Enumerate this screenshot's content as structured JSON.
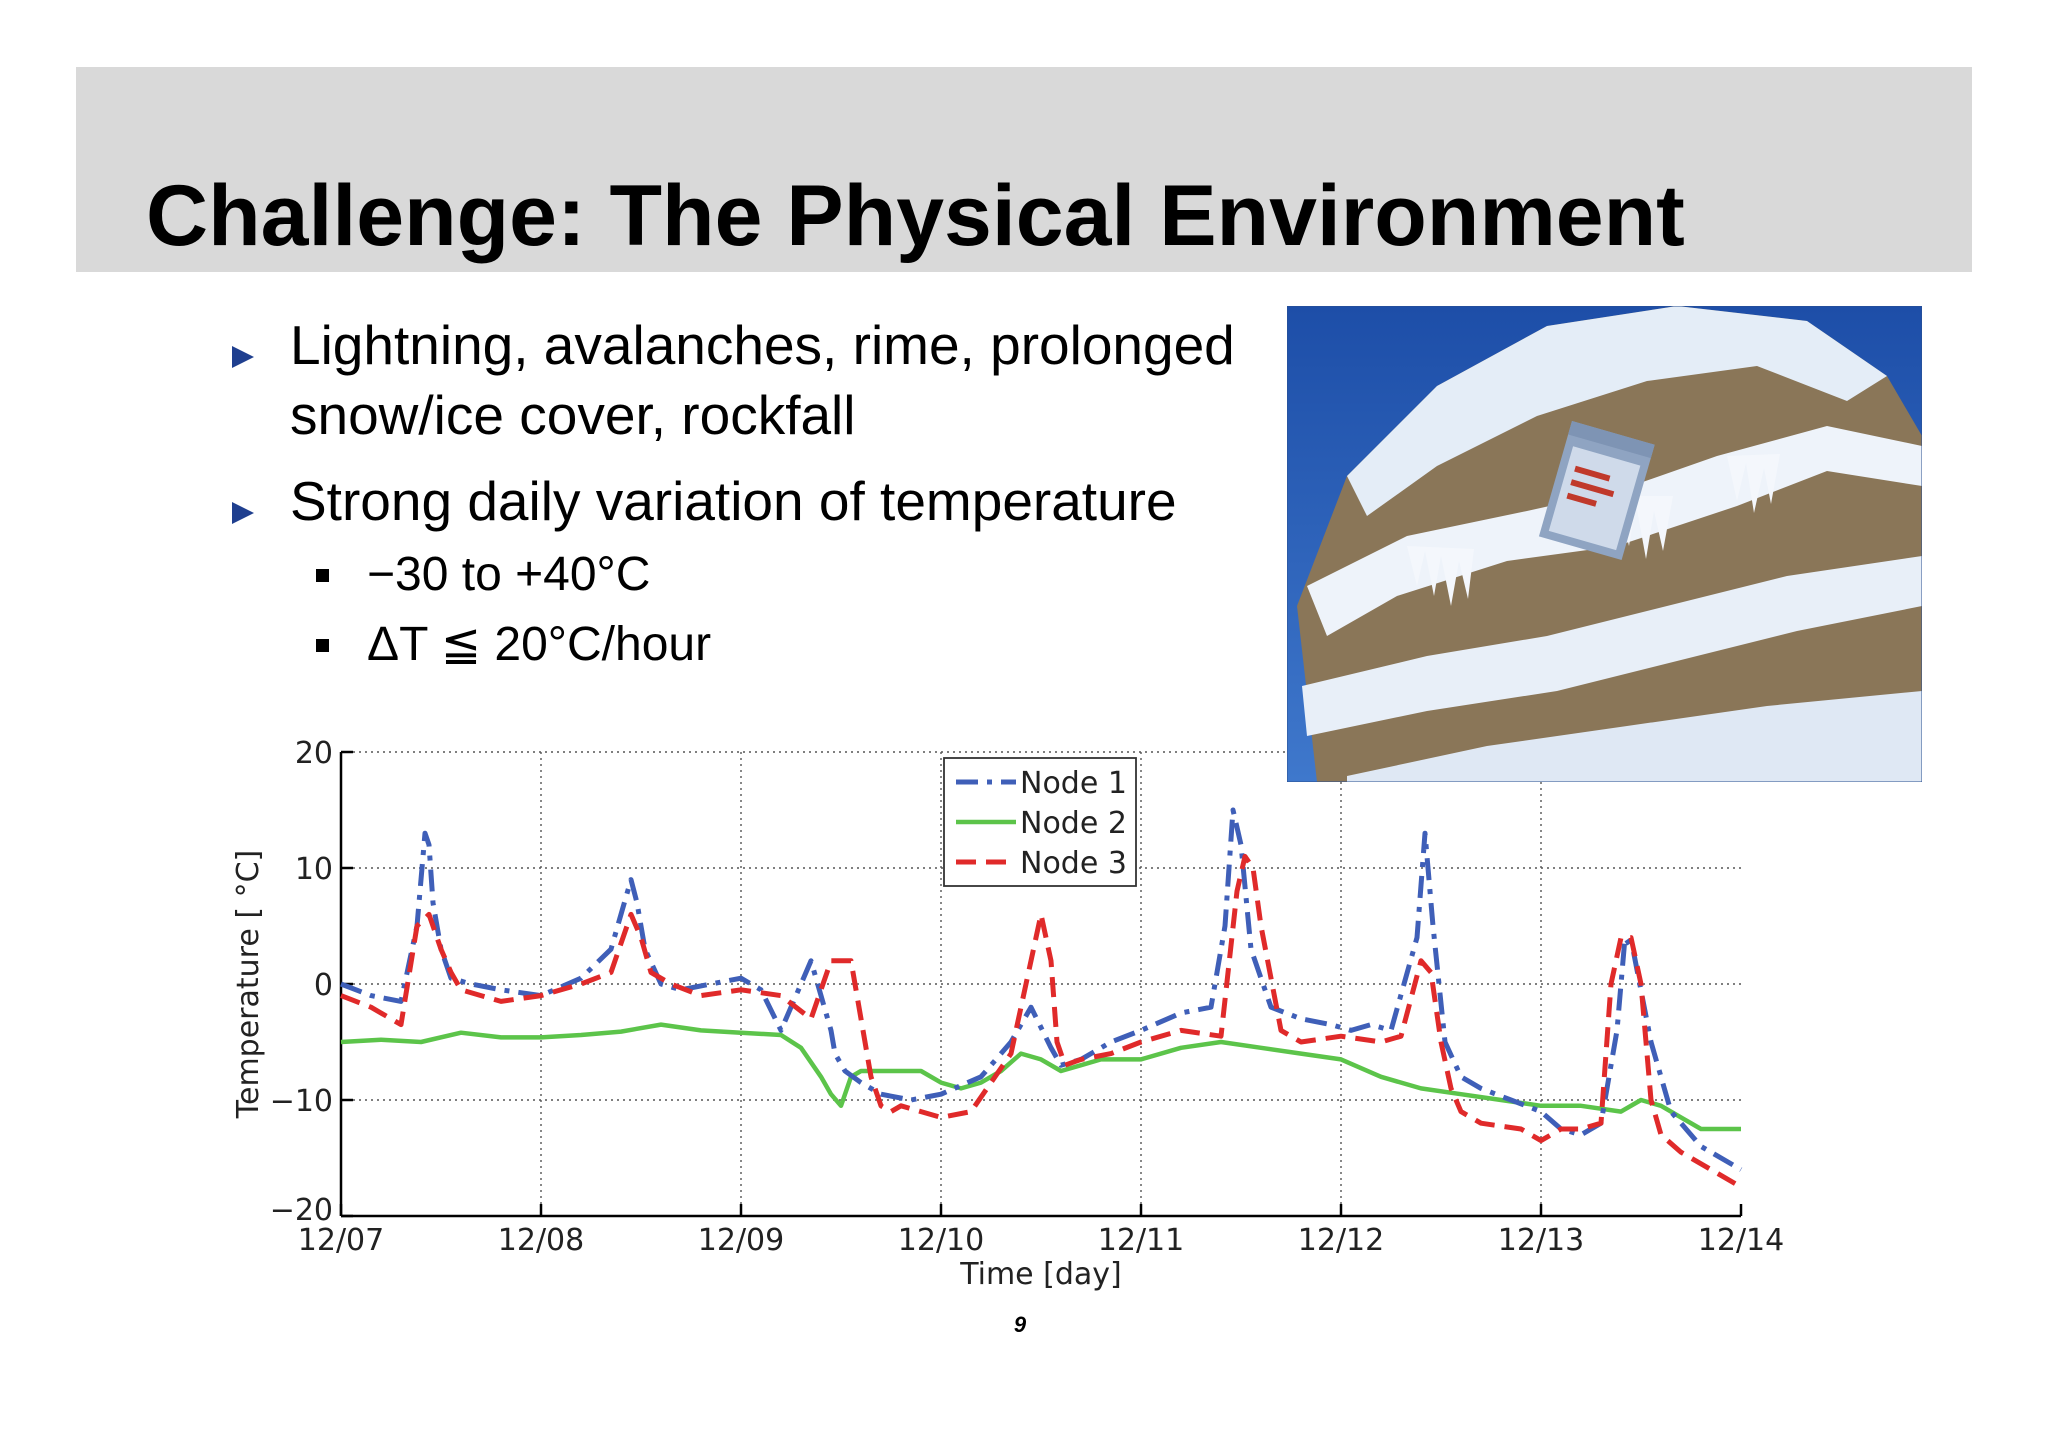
{
  "slide": {
    "title": "Challenge: The Physical Environment",
    "bullets": [
      "Lightning, avalanches, rime, prolonged snow/ice cover, rockfall",
      "Strong daily variation of temperature"
    ],
    "sub_bullets": [
      "−30 to +40°C",
      "ΔT ≦ 20°C/hour"
    ],
    "page_number": "9",
    "photo_icon": "rime-covered-rock-with-sensor-photo",
    "colors": {
      "title_bar": "#d9d9d9",
      "bullet_arrow": "#1f3f8f",
      "node1": "#3f5fb8",
      "node2": "#5cc44a",
      "node3": "#e02a2a"
    }
  },
  "chart_data": {
    "type": "line",
    "title": "",
    "xlabel": "Time [day]",
    "ylabel": "Temperature [ °C]",
    "xlim": [
      0,
      7
    ],
    "ylim": [
      -20,
      20
    ],
    "x_ticks": [
      "12/07",
      "12/08",
      "12/09",
      "12/10",
      "12/11",
      "12/12",
      "12/13",
      "12/14"
    ],
    "y_ticks": [
      "−20",
      "−10",
      "0",
      "10",
      "20"
    ],
    "y_tick_values": [
      -20,
      -10,
      0,
      10,
      20
    ],
    "grid": true,
    "legend_position": "top-center",
    "series": [
      {
        "name": "Node 1",
        "style": "dash-dot",
        "x": [
          0,
          0.15,
          0.3,
          0.38,
          0.42,
          0.44,
          0.46,
          0.5,
          0.55,
          0.65,
          0.8,
          1.0,
          1.2,
          1.35,
          1.45,
          1.48,
          1.52,
          1.6,
          1.7,
          1.85,
          2.0,
          2.1,
          2.2,
          2.35,
          2.45,
          2.47,
          2.52,
          2.6,
          2.7,
          2.85,
          3.0,
          3.2,
          3.35,
          3.45,
          3.55,
          3.6,
          3.7,
          3.85,
          4.0,
          4.2,
          4.35,
          4.42,
          4.46,
          4.5,
          4.55,
          4.65,
          4.8,
          4.95,
          5.05,
          5.15,
          5.25,
          5.38,
          5.42,
          5.46,
          5.52,
          5.6,
          5.7,
          5.85,
          6.0,
          6.1,
          6.2,
          6.3,
          6.38,
          6.42,
          6.46,
          6.55,
          6.65,
          6.8,
          7.0
        ],
        "y": [
          0,
          -1,
          -1.5,
          5,
          13,
          12,
          7,
          3,
          0.5,
          0,
          -0.5,
          -1,
          0.5,
          3,
          9,
          7,
          3,
          0,
          -0.5,
          0,
          0.5,
          -0.5,
          -4,
          2,
          -4,
          -6,
          -7.5,
          -8.5,
          -9.5,
          -10,
          -9.5,
          -8,
          -5,
          -2,
          -5.5,
          -7,
          -6.5,
          -5,
          -4,
          -2.5,
          -2,
          5,
          15,
          12,
          3,
          -2,
          -3,
          -3.5,
          -4,
          -3.5,
          -4,
          4,
          13,
          5,
          -5,
          -8,
          -9,
          -10,
          -11,
          -12.5,
          -13,
          -12,
          -4,
          4,
          3,
          -5,
          -11,
          -14,
          -16
        ]
      },
      {
        "name": "Node 2",
        "style": "solid",
        "x": [
          0,
          0.2,
          0.4,
          0.6,
          0.8,
          1.0,
          1.2,
          1.4,
          1.6,
          1.8,
          2.0,
          2.2,
          2.3,
          2.4,
          2.45,
          2.5,
          2.55,
          2.6,
          2.7,
          2.9,
          3.0,
          3.1,
          3.2,
          3.3,
          3.4,
          3.5,
          3.6,
          3.7,
          3.8,
          4.0,
          4.2,
          4.4,
          4.6,
          4.8,
          5.0,
          5.2,
          5.4,
          5.6,
          5.8,
          6.0,
          6.2,
          6.4,
          6.5,
          6.6,
          6.7,
          6.8,
          7.0
        ],
        "y": [
          -5,
          -4.8,
          -5,
          -4.2,
          -4.6,
          -4.6,
          -4.4,
          -4.1,
          -3.5,
          -4,
          -4.2,
          -4.4,
          -5.5,
          -8,
          -9.5,
          -10.5,
          -8,
          -7.5,
          -7.5,
          -7.5,
          -8.5,
          -9,
          -8.5,
          -7.5,
          -6,
          -6.5,
          -7.5,
          -7,
          -6.5,
          -6.5,
          -5.5,
          -5,
          -5.5,
          -6,
          -6.5,
          -8,
          -9,
          -9.5,
          -10,
          -10.5,
          -10.5,
          -11,
          -10,
          -10.5,
          -11.5,
          -12.5,
          -12.5
        ]
      },
      {
        "name": "Node 3",
        "style": "dash",
        "x": [
          0,
          0.15,
          0.3,
          0.38,
          0.44,
          0.5,
          0.55,
          0.6,
          0.7,
          0.8,
          1.0,
          1.2,
          1.35,
          1.45,
          1.5,
          1.55,
          1.65,
          1.8,
          2.0,
          2.2,
          2.35,
          2.45,
          2.5,
          2.55,
          2.6,
          2.65,
          2.7,
          2.75,
          2.8,
          2.9,
          3.0,
          3.15,
          3.35,
          3.5,
          3.55,
          3.58,
          3.62,
          3.7,
          3.85,
          4.0,
          4.2,
          4.4,
          4.48,
          4.52,
          4.56,
          4.6,
          4.7,
          4.8,
          5.0,
          5.2,
          5.3,
          5.4,
          5.45,
          5.5,
          5.55,
          5.6,
          5.7,
          5.9,
          6.0,
          6.1,
          6.2,
          6.3,
          6.35,
          6.4,
          6.45,
          6.5,
          6.55,
          6.6,
          6.7,
          6.85,
          7.0
        ],
        "y": [
          -1,
          -2,
          -3.5,
          5,
          6,
          3,
          1,
          -0.5,
          -1,
          -1.5,
          -1,
          0,
          1,
          6,
          4,
          1,
          0,
          -1,
          -0.5,
          -1,
          -3,
          2,
          2,
          2,
          -3,
          -8,
          -10.5,
          -11,
          -10.5,
          -11,
          -11.5,
          -11,
          -6,
          6,
          2,
          -5,
          -7,
          -6.5,
          -6,
          -5,
          -4,
          -4.5,
          8,
          11,
          10,
          5,
          -4,
          -5,
          -4.5,
          -5,
          -4.5,
          2,
          1,
          -5,
          -9,
          -11,
          -12,
          -12.5,
          -13.5,
          -12.5,
          -12.5,
          -12,
          0,
          4,
          4,
          0,
          -10,
          -13,
          -14.5,
          -16,
          -17.5
        ]
      }
    ]
  }
}
